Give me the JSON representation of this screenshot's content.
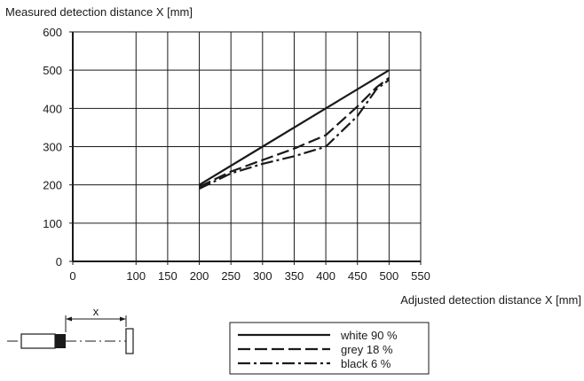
{
  "chart_data": {
    "type": "line",
    "ylabel": "Measured detection distance X [mm]",
    "xlabel": "Adjusted detection distance X [mm]",
    "xlim": [
      0,
      550
    ],
    "ylim": [
      0,
      600
    ],
    "xticks": [
      "0",
      "100",
      "150",
      "200",
      "250",
      "300",
      "350",
      "400",
      "450",
      "500",
      "550"
    ],
    "xtick_values": [
      0,
      100,
      150,
      200,
      250,
      300,
      350,
      400,
      450,
      500,
      550
    ],
    "yticks": [
      "0",
      "100",
      "200",
      "300",
      "400",
      "500",
      "600"
    ],
    "ytick_values": [
      0,
      100,
      200,
      300,
      400,
      500,
      600
    ],
    "grid": true,
    "legend_position": "bottom-right",
    "series": [
      {
        "name": "white 90 %",
        "dash": "solid",
        "x": [
          200,
          300,
          400,
          500
        ],
        "y": [
          200,
          300,
          400,
          500
        ]
      },
      {
        "name": "grey 18 %",
        "dash": "dashed",
        "x": [
          200,
          250,
          300,
          350,
          400,
          450,
          480,
          500
        ],
        "y": [
          195,
          235,
          265,
          295,
          330,
          405,
          455,
          480
        ]
      },
      {
        "name": "black 6 %",
        "dash": "dashdot",
        "x": [
          200,
          250,
          300,
          350,
          400,
          450,
          480,
          500
        ],
        "y": [
          190,
          230,
          255,
          275,
          300,
          380,
          450,
          475
        ]
      }
    ]
  },
  "diagram": {
    "distance_label": "x"
  }
}
